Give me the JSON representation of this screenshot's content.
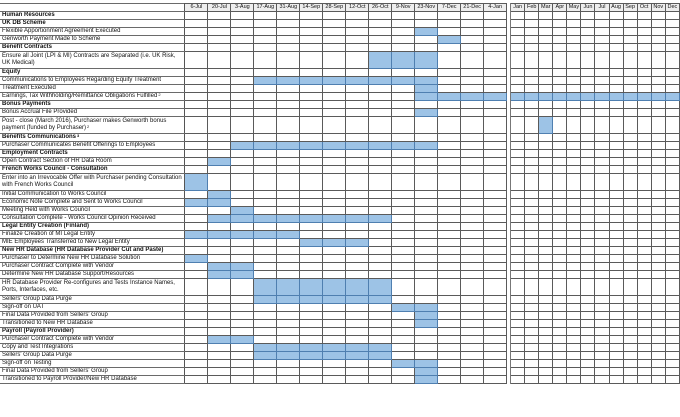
{
  "periods": [
    "6-Jul",
    "20-Jul",
    "3-Aug",
    "17-Aug",
    "31-Aug",
    "14-Sep",
    "28-Sep",
    "12-Oct",
    "26-Oct",
    "9-Nov",
    "23-Nov",
    "7-Dec",
    "21-Dec",
    "4-Jan"
  ],
  "months": [
    "Jan",
    "Feb",
    "Mar",
    "Apr",
    "May",
    "Jun",
    "Jul",
    "Aug",
    "Sep",
    "Oct",
    "Nov",
    "Dec"
  ],
  "colors": {
    "bar_fill": "#9dc3e6",
    "bar_border": "#4f7fb0",
    "header_bg": "#eeeeee"
  },
  "rows": [
    {
      "label": "Human Resources",
      "type": "section",
      "active": []
    },
    {
      "label": "UK DB Scheme",
      "type": "section",
      "active": []
    },
    {
      "label": "Flexible Apportionment Agreement Executed",
      "type": "task",
      "active": [
        "23-Nov"
      ]
    },
    {
      "label": "Genworth Payment Made to Scheme",
      "type": "task",
      "active": [
        "7-Dec"
      ]
    },
    {
      "label": "Benefit Contracts",
      "type": "section",
      "active": []
    },
    {
      "label": "Ensure all Joint (LPI & MI) Contracts are Separated  (i.e. UK Risk, UK Medical)",
      "type": "task",
      "two_line": true,
      "active": [
        "26-Oct",
        "9-Nov",
        "23-Nov"
      ]
    },
    {
      "label": "Equity",
      "type": "section",
      "active": []
    },
    {
      "label": "Communications to Employees Regarding Equity Treatment",
      "type": "task",
      "active": [
        "17-Aug",
        "31-Aug",
        "14-Sep",
        "28-Sep",
        "12-Oct",
        "26-Oct",
        "9-Nov",
        "23-Nov"
      ]
    },
    {
      "label": "Treatment Executed",
      "type": "task",
      "active": [
        "23-Nov"
      ]
    },
    {
      "label": "Earnings, Tax Withholding/Remittance Obligations Fulfilled",
      "sup": "2",
      "type": "task",
      "active": [
        "23-Nov",
        "7-Dec",
        "21-Dec",
        "4-Jan",
        "Jan",
        "Feb",
        "Mar",
        "Apr",
        "May",
        "Jun",
        "Jul",
        "Aug",
        "Sep",
        "Oct",
        "Nov",
        "Dec"
      ]
    },
    {
      "label": "Bonus Payments",
      "type": "section",
      "active": []
    },
    {
      "label": "Bonus Accrual File Provided",
      "type": "task",
      "active": [
        "23-Nov"
      ]
    },
    {
      "label": "Post - close (March 2016), Purchaser makes Genworth bonus payment (funded by Purchaser)",
      "sup": "2",
      "type": "task",
      "two_line": true,
      "active": [
        "Mar"
      ]
    },
    {
      "label": "Benefits Communications",
      "sup": "3",
      "type": "section",
      "active": []
    },
    {
      "label": "Purchaser Communicates Benefit Offerings to Employees",
      "type": "task",
      "active": [
        "3-Aug",
        "17-Aug",
        "31-Aug",
        "14-Sep",
        "28-Sep",
        "12-Oct",
        "26-Oct",
        "9-Nov",
        "23-Nov"
      ]
    },
    {
      "label": "Employment Contracts",
      "type": "section",
      "active": []
    },
    {
      "label": "Open Contract Section of HR Data Room",
      "type": "task",
      "active": [
        "20-Jul"
      ]
    },
    {
      "label": "French Works Council - Consultation",
      "type": "section",
      "active": []
    },
    {
      "label": "Enter into an Irrevocable Offer with Purchaser pending Consultation with French Works Council",
      "type": "task",
      "two_line": true,
      "active": [
        "6-Jul"
      ]
    },
    {
      "label": "Initial Communication to Works Council",
      "type": "task",
      "active": [
        "20-Jul"
      ]
    },
    {
      "label": "Economic Note Complete and Sent to Works Council",
      "type": "task",
      "active": [
        "6-Jul",
        "20-Jul"
      ]
    },
    {
      "label": "Meeting Held with Works Council",
      "type": "task",
      "active": [
        "3-Aug"
      ]
    },
    {
      "label": "Consultation Complete  - Works Council Opinion Received",
      "type": "task",
      "active": [
        "20-Jul",
        "3-Aug",
        "17-Aug",
        "31-Aug",
        "14-Sep",
        "28-Sep",
        "12-Oct",
        "26-Oct"
      ]
    },
    {
      "label": "Legal Entity Creation (Finland)",
      "type": "section",
      "active": []
    },
    {
      "label": "Finalize Creation of MI Legal Entity",
      "type": "task",
      "active": [
        "6-Jul",
        "20-Jul",
        "3-Aug",
        "17-Aug",
        "31-Aug"
      ]
    },
    {
      "label": "MIE Employees Transferred to New Legal Entity",
      "type": "task",
      "active": [
        "14-Sep",
        "28-Sep",
        "12-Oct"
      ]
    },
    {
      "label": "New HR Database (HR Database Provider Cut and Paste)",
      "type": "section",
      "active": []
    },
    {
      "label": "Purchaser to Determine New HR Database Solution",
      "type": "task",
      "active": [
        "6-Jul"
      ]
    },
    {
      "label": "Purchaser Contract Complete with Vendor",
      "type": "task",
      "active": [
        "20-Jul",
        "3-Aug"
      ]
    },
    {
      "label": "Determine New HR Database Support/Resources",
      "type": "task",
      "active": [
        "20-Jul",
        "3-Aug"
      ]
    },
    {
      "label": "HR Database Provider Re-configures and Tests Instance Names, Ports, Interfaces, etc.",
      "type": "task",
      "two_line": true,
      "active": [
        "17-Aug",
        "31-Aug",
        "14-Sep",
        "28-Sep",
        "12-Oct",
        "26-Oct"
      ]
    },
    {
      "label": "Sellers' Group Data Purge",
      "type": "task",
      "active": [
        "17-Aug",
        "31-Aug",
        "14-Sep",
        "28-Sep",
        "12-Oct",
        "26-Oct"
      ]
    },
    {
      "label": "Sign-off on UAT",
      "type": "task",
      "active": [
        "9-Nov",
        "23-Nov"
      ]
    },
    {
      "label": "Final Data Provided from Sellers' Group",
      "type": "task",
      "active": [
        "23-Nov"
      ]
    },
    {
      "label": "Transitioned to New HR Database",
      "type": "task",
      "active": [
        "23-Nov"
      ]
    },
    {
      "label": "Payroll (Payroll Provider)",
      "type": "section",
      "active": []
    },
    {
      "label": "Purchaser Contract Complete with Vendor",
      "type": "task",
      "active": [
        "20-Jul",
        "3-Aug"
      ]
    },
    {
      "label": "Copy and Test Integrations",
      "type": "task",
      "active": [
        "17-Aug",
        "31-Aug",
        "14-Sep",
        "28-Sep",
        "12-Oct",
        "26-Oct"
      ]
    },
    {
      "label": "Sellers' Group Data Purge",
      "type": "task",
      "active": [
        "17-Aug",
        "31-Aug",
        "14-Sep",
        "28-Sep",
        "12-Oct",
        "26-Oct"
      ]
    },
    {
      "label": "Sign-off on Testing",
      "type": "task",
      "active": [
        "9-Nov",
        "23-Nov"
      ]
    },
    {
      "label": "Final Data Provided from Sellers' Group",
      "type": "task",
      "active": [
        "23-Nov"
      ]
    },
    {
      "label": "Transitioned to Payroll Provider/New HR Database",
      "type": "task",
      "active": [
        "23-Nov"
      ]
    }
  ]
}
